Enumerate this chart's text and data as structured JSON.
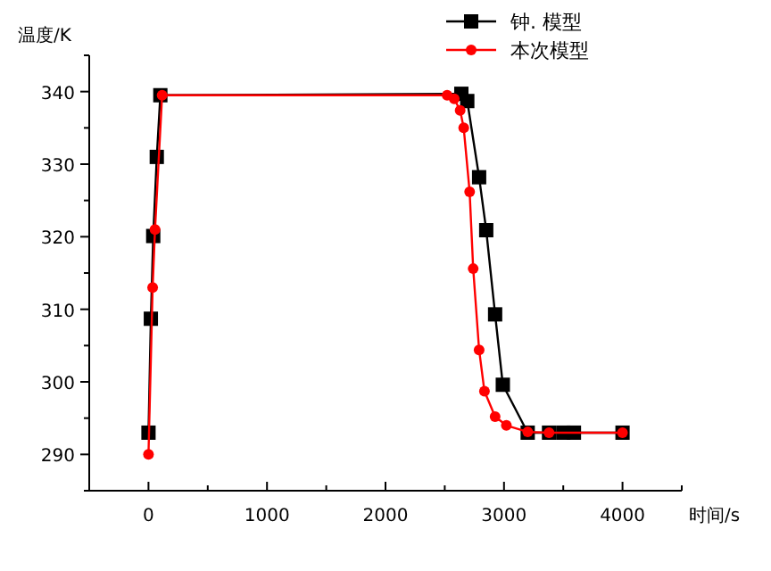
{
  "chart_data": {
    "type": "line",
    "xlabel": "时间/s",
    "ylabel": "温度/K",
    "xlim": [
      -500,
      4500
    ],
    "ylim": [
      285,
      345
    ],
    "xticks": [
      {
        "value": -500,
        "label": null
      },
      0,
      {
        "value": 500,
        "label": null
      },
      1000,
      {
        "value": 1500,
        "label": null
      },
      2000,
      {
        "value": 2500,
        "label": null
      },
      3000,
      {
        "value": 3500,
        "label": null
      },
      4000,
      {
        "value": 4500,
        "label": null
      }
    ],
    "yticks": [
      {
        "value": 285,
        "label": null
      },
      290,
      {
        "value": 295,
        "label": null
      },
      300,
      {
        "value": 305,
        "label": null
      },
      310,
      {
        "value": 315,
        "label": null
      },
      320,
      {
        "value": 325,
        "label": null
      },
      330,
      {
        "value": 335,
        "label": null
      },
      340,
      {
        "value": 345,
        "label": null
      }
    ],
    "grid": false,
    "legend": "top right",
    "line_style": "solid",
    "series": [
      {
        "name": "钟. 模型",
        "color": "#000000",
        "marker": "square",
        "x": [
          0,
          20,
          40,
          70,
          100,
          2640,
          2690,
          2790,
          2850,
          2925,
          2990,
          3200,
          3380,
          3500,
          3590,
          4000
        ],
        "values": [
          293,
          308.7,
          320.1,
          331,
          339.5,
          339.7,
          338.7,
          328.2,
          320.9,
          309.3,
          299.6,
          293,
          293,
          293,
          293,
          293
        ]
      },
      {
        "name": "本次模型",
        "color": "#ff0000",
        "marker": "circle",
        "x": [
          0,
          35,
          55,
          115,
          2520,
          2580,
          2630,
          2660,
          2710,
          2740,
          2790,
          2835,
          2925,
          3020,
          3200,
          3380,
          4000
        ],
        "values": [
          290,
          313,
          321,
          339.5,
          339.5,
          339,
          337.4,
          335,
          326.2,
          315.6,
          304.4,
          298.7,
          295.2,
          294,
          293.1,
          293,
          293
        ]
      }
    ]
  }
}
